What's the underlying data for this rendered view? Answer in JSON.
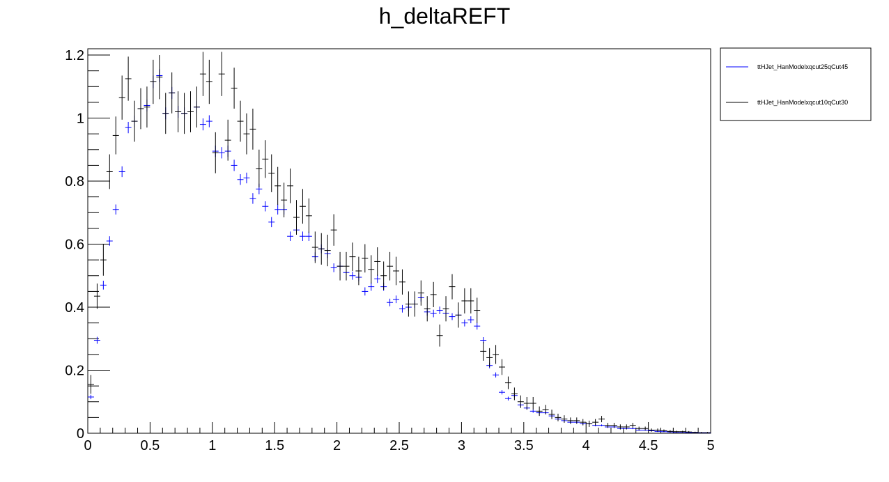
{
  "chart_data": {
    "type": "scatter",
    "title": "h_deltaREFT",
    "xlabel": "",
    "ylabel": "",
    "xlim": [
      0,
      5
    ],
    "ylim": [
      0,
      1.22
    ],
    "x_ticks": [
      "0",
      "0.5",
      "1",
      "1.5",
      "2",
      "2.5",
      "3",
      "3.5",
      "4",
      "4.5",
      "5"
    ],
    "y_ticks": [
      "0",
      "0.2",
      "0.4",
      "0.6",
      "0.8",
      "1",
      "1.2"
    ],
    "legend_position": "right",
    "grid": false,
    "bin_width": 0.05,
    "series": [
      {
        "name": "ttHJet_HanModelxqcut25qCut45",
        "color": "#0000ff",
        "x": [
          0.025,
          0.075,
          0.125,
          0.175,
          0.225,
          0.275,
          0.325,
          0.375,
          0.425,
          0.475,
          0.525,
          0.575,
          0.625,
          0.675,
          0.725,
          0.775,
          0.825,
          0.875,
          0.925,
          0.975,
          1.025,
          1.075,
          1.125,
          1.175,
          1.225,
          1.275,
          1.325,
          1.375,
          1.425,
          1.475,
          1.525,
          1.575,
          1.625,
          1.675,
          1.725,
          1.775,
          1.825,
          1.875,
          1.925,
          1.975,
          2.025,
          2.075,
          2.125,
          2.175,
          2.225,
          2.275,
          2.325,
          2.375,
          2.425,
          2.475,
          2.525,
          2.575,
          2.625,
          2.675,
          2.725,
          2.775,
          2.825,
          2.875,
          2.925,
          2.975,
          3.025,
          3.075,
          3.125,
          3.175,
          3.225,
          3.275,
          3.325,
          3.375,
          3.425,
          3.475,
          3.525,
          3.575,
          3.625,
          3.675,
          3.725,
          3.775,
          3.825,
          3.875,
          3.925,
          3.975,
          4.025,
          4.075,
          4.125,
          4.175,
          4.225,
          4.275,
          4.325,
          4.375,
          4.425,
          4.475,
          4.525,
          4.575,
          4.625,
          4.675,
          4.725,
          4.775,
          4.825,
          4.875,
          4.925,
          4.975
        ],
        "y": [
          0.115,
          0.295,
          0.47,
          0.61,
          0.71,
          0.83,
          0.97,
          0.99,
          1.03,
          1.04,
          1.115,
          1.135,
          1.015,
          1.08,
          1.02,
          1.015,
          1.02,
          1.035,
          0.98,
          0.99,
          0.895,
          0.89,
          0.895,
          0.85,
          0.805,
          0.81,
          0.745,
          0.775,
          0.72,
          0.67,
          0.71,
          0.71,
          0.625,
          0.645,
          0.625,
          0.625,
          0.56,
          0.585,
          0.57,
          0.525,
          0.53,
          0.51,
          0.5,
          0.495,
          0.45,
          0.465,
          0.49,
          0.465,
          0.415,
          0.425,
          0.395,
          0.4,
          0.41,
          0.43,
          0.385,
          0.38,
          0.39,
          0.38,
          0.37,
          0.375,
          0.35,
          0.36,
          0.34,
          0.295,
          0.215,
          0.185,
          0.13,
          0.11,
          0.12,
          0.09,
          0.08,
          0.07,
          0.065,
          0.065,
          0.055,
          0.045,
          0.04,
          0.035,
          0.035,
          0.03,
          0.03,
          0.025,
          0.025,
          0.02,
          0.02,
          0.015,
          0.015,
          0.015,
          0.01,
          0.01,
          0.008,
          0.006,
          0.005,
          0.004,
          0.003,
          0.003,
          0.002,
          0.002,
          0.001,
          0.001
        ],
        "yerr": [
          0.007,
          0.011,
          0.014,
          0.015,
          0.016,
          0.017,
          0.018,
          0.018,
          0.019,
          0.019,
          0.02,
          0.02,
          0.019,
          0.019,
          0.019,
          0.019,
          0.019,
          0.019,
          0.019,
          0.019,
          0.018,
          0.018,
          0.018,
          0.018,
          0.017,
          0.017,
          0.017,
          0.017,
          0.016,
          0.016,
          0.016,
          0.016,
          0.015,
          0.015,
          0.015,
          0.015,
          0.014,
          0.014,
          0.014,
          0.014,
          0.014,
          0.013,
          0.013,
          0.013,
          0.013,
          0.013,
          0.013,
          0.013,
          0.012,
          0.012,
          0.012,
          0.012,
          0.012,
          0.012,
          0.012,
          0.012,
          0.012,
          0.012,
          0.011,
          0.011,
          0.011,
          0.011,
          0.011,
          0.01,
          0.009,
          0.008,
          0.007,
          0.006,
          0.006,
          0.006,
          0.005,
          0.005,
          0.005,
          0.005,
          0.004,
          0.004,
          0.004,
          0.004,
          0.004,
          0.003,
          0.003,
          0.003,
          0.003,
          0.003,
          0.003,
          0.002,
          0.002,
          0.002,
          0.002,
          0.002,
          0.002,
          0.002,
          0.001,
          0.001,
          0.001,
          0.001,
          0.001,
          0.001,
          0.001,
          0.001
        ]
      },
      {
        "name": "ttHJet_HanModelxqcut10qCut30",
        "color": "#000000",
        "x": [
          0.025,
          0.075,
          0.125,
          0.175,
          0.225,
          0.275,
          0.325,
          0.375,
          0.425,
          0.475,
          0.525,
          0.575,
          0.625,
          0.675,
          0.725,
          0.775,
          0.825,
          0.875,
          0.925,
          0.975,
          1.025,
          1.075,
          1.125,
          1.175,
          1.225,
          1.275,
          1.325,
          1.375,
          1.425,
          1.475,
          1.525,
          1.575,
          1.625,
          1.675,
          1.725,
          1.775,
          1.825,
          1.875,
          1.925,
          1.975,
          2.025,
          2.075,
          2.125,
          2.175,
          2.225,
          2.275,
          2.325,
          2.375,
          2.425,
          2.475,
          2.525,
          2.575,
          2.625,
          2.675,
          2.725,
          2.775,
          2.825,
          2.875,
          2.925,
          2.975,
          3.025,
          3.075,
          3.125,
          3.175,
          3.225,
          3.275,
          3.325,
          3.375,
          3.425,
          3.475,
          3.525,
          3.575,
          3.625,
          3.675,
          3.725,
          3.775,
          3.825,
          3.875,
          3.925,
          3.975,
          4.025,
          4.075,
          4.125,
          4.175,
          4.225,
          4.275,
          4.325,
          4.375,
          4.425,
          4.475,
          4.525,
          4.575,
          4.625,
          4.675,
          4.725,
          4.775,
          4.825,
          4.875,
          4.925,
          4.975
        ],
        "y": [
          0.155,
          0.435,
          0.55,
          0.83,
          0.945,
          1.065,
          1.125,
          0.99,
          1.03,
          1.035,
          1.115,
          1.13,
          1.015,
          1.08,
          1.02,
          1.015,
          1.02,
          1.035,
          1.14,
          1.115,
          0.89,
          1.14,
          0.93,
          1.095,
          0.99,
          0.95,
          0.965,
          0.84,
          0.87,
          0.825,
          0.785,
          0.74,
          0.785,
          0.685,
          0.72,
          0.69,
          0.59,
          0.585,
          0.58,
          0.645,
          0.53,
          0.53,
          0.56,
          0.515,
          0.555,
          0.52,
          0.545,
          0.5,
          0.53,
          0.515,
          0.48,
          0.41,
          0.41,
          0.445,
          0.395,
          0.44,
          0.31,
          0.395,
          0.465,
          0.375,
          0.42,
          0.42,
          0.39,
          0.26,
          0.24,
          0.25,
          0.21,
          0.16,
          0.125,
          0.1,
          0.095,
          0.095,
          0.07,
          0.075,
          0.06,
          0.05,
          0.045,
          0.04,
          0.04,
          0.035,
          0.03,
          0.035,
          0.045,
          0.025,
          0.025,
          0.02,
          0.02,
          0.025,
          0.015,
          0.015,
          0.01,
          0.01,
          0.008,
          0.006,
          0.005,
          0.005,
          0.004,
          0.003,
          0.002,
          0.002
        ],
        "yerr": [
          0.03,
          0.04,
          0.05,
          0.055,
          0.06,
          0.07,
          0.07,
          0.065,
          0.065,
          0.065,
          0.07,
          0.07,
          0.065,
          0.065,
          0.065,
          0.065,
          0.065,
          0.065,
          0.07,
          0.07,
          0.065,
          0.07,
          0.065,
          0.065,
          0.065,
          0.065,
          0.065,
          0.06,
          0.06,
          0.06,
          0.06,
          0.055,
          0.055,
          0.055,
          0.055,
          0.055,
          0.05,
          0.05,
          0.05,
          0.05,
          0.045,
          0.045,
          0.045,
          0.045,
          0.045,
          0.045,
          0.045,
          0.045,
          0.045,
          0.045,
          0.04,
          0.04,
          0.04,
          0.04,
          0.04,
          0.04,
          0.035,
          0.04,
          0.04,
          0.04,
          0.04,
          0.04,
          0.04,
          0.03,
          0.03,
          0.03,
          0.025,
          0.02,
          0.02,
          0.02,
          0.02,
          0.02,
          0.015,
          0.015,
          0.015,
          0.012,
          0.012,
          0.01,
          0.01,
          0.01,
          0.01,
          0.01,
          0.01,
          0.008,
          0.008,
          0.008,
          0.008,
          0.008,
          0.006,
          0.006,
          0.005,
          0.005,
          0.004,
          0.004,
          0.003,
          0.003,
          0.003,
          0.002,
          0.002,
          0.002
        ]
      }
    ]
  }
}
